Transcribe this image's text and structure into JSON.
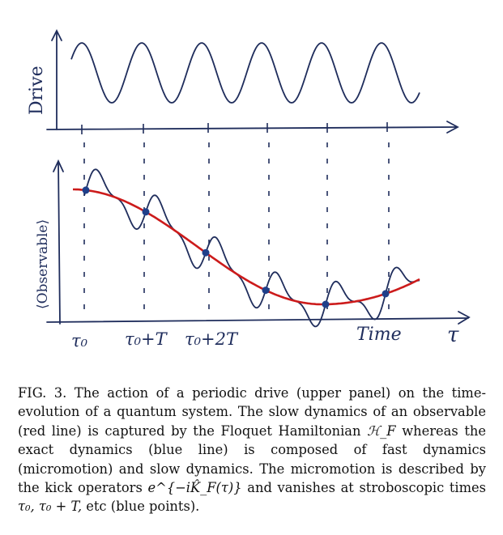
{
  "figure": {
    "drive_label": "Drive",
    "observable_label": "⟨Observable⟩",
    "time_label": "Time",
    "tau_label": "τ",
    "tick_labels": [
      "τ₀",
      "τ₀+T",
      "τ₀+2T"
    ],
    "colors": {
      "ink": "#1f2d5c",
      "red": "#cc1b1b",
      "blue": "#1f3f8a"
    }
  },
  "caption": {
    "label": "FIG. 3.",
    "text_1": "The action of a periodic drive (upper panel) on the time-evolution of a quantum system. The slow dynamics of an observable (red line) is captured by the Floquet Hamiltonian",
    "math_hf": "ℋ_F",
    "text_2": "whereas the exact dynamics (blue line) is composed of fast dynamics (micromotion) and slow dynamics. The micromotion is described by the kick operators",
    "math_kick": "e^{−iK̂_F(τ)}",
    "text_3": "and vanishes at stroboscopic times",
    "math_times": "τ₀, τ₀ + T,",
    "text_4": "etc (blue points)."
  }
}
